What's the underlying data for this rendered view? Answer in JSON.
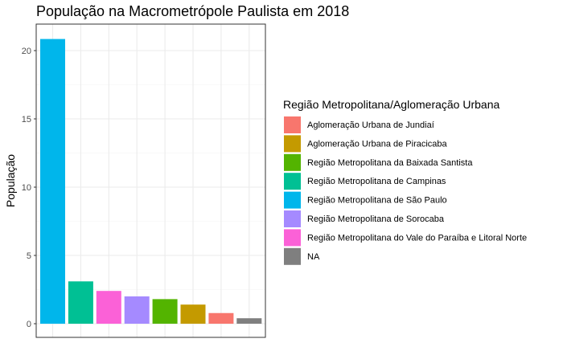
{
  "chart_data": {
    "type": "bar",
    "title": "População na Macrometrópole Paulista em 2018",
    "xlabel": "",
    "ylabel": "População",
    "ylim": [
      0,
      21.8
    ],
    "yticks": [
      0,
      5,
      10,
      15,
      20
    ],
    "grid": true,
    "legend_position": "right",
    "legend_title": "Região Metropolitana/Aglomeração Urbana",
    "legend": [
      {
        "name": "Aglomeração Urbana de Jundiaí",
        "color": "#F8766D"
      },
      {
        "name": "Aglomeração Urbana de Piracicaba",
        "color": "#C49A00"
      },
      {
        "name": "Região Metropolitana da Baixada Santista",
        "color": "#53B400"
      },
      {
        "name": "Região Metropolitana de Campinas",
        "color": "#00C094"
      },
      {
        "name": "Região Metropolitana de São Paulo",
        "color": "#00B6EB"
      },
      {
        "name": "Região Metropolitana de Sorocaba",
        "color": "#A58AFF"
      },
      {
        "name": "Região Metropolitana do Vale do Paraíba e Litoral Norte",
        "color": "#FB61D7"
      },
      {
        "name": "NA",
        "color": "#7F7F7F"
      }
    ],
    "bars": [
      {
        "group": "Região Metropolitana de São Paulo",
        "value": 20.85
      },
      {
        "group": "Região Metropolitana de Campinas",
        "value": 3.1
      },
      {
        "group": "Região Metropolitana do Vale do Paraíba e Litoral Norte",
        "value": 2.4
      },
      {
        "group": "Região Metropolitana de Sorocaba",
        "value": 2.0
      },
      {
        "group": "Região Metropolitana da Baixada Santista",
        "value": 1.8
      },
      {
        "group": "Aglomeração Urbana de Piracicaba",
        "value": 1.4
      },
      {
        "group": "Aglomeração Urbana de Jundiaí",
        "value": 0.78
      },
      {
        "group": "NA",
        "value": 0.4
      }
    ]
  },
  "colors": {
    "panel_border": "#333333",
    "grid_major": "#ebebeb",
    "grid_minor": "#f3f3f3",
    "tick": "#333333"
  }
}
